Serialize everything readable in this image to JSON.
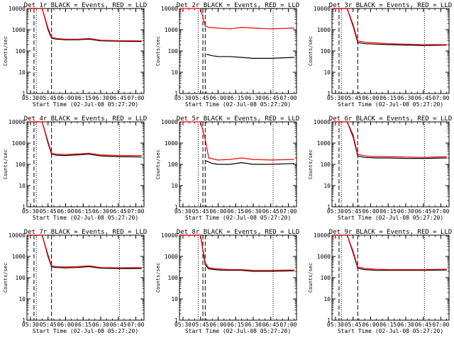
{
  "figure": {
    "x_axis_label": "Start Time (02-Jul-08 05:27:20)",
    "y_axis_label": "Counts/sec",
    "x_tick_labels": [
      "05:30",
      "05:45",
      "06:00",
      "06:15",
      "06:30",
      "06:45",
      "07:00"
    ],
    "y_tick_labels": [
      "1",
      "10",
      "100",
      "1000",
      "10000"
    ]
  },
  "chart_data": [
    {
      "type": "line",
      "title": "Det 1r BLACK = Events, RED = LLD",
      "xlabel": "Start Time (02-Jul-08 05:27:20)",
      "ylabel": "Counts/sec",
      "xlim": [
        "05:27",
        "07:07"
      ],
      "ylim": [
        1,
        10000
      ],
      "yscale": "log",
      "x_ticks": [
        "05:30",
        "05:45",
        "06:00",
        "06:15",
        "06:30",
        "06:45",
        "07:00"
      ],
      "dashed_markers": [
        "05:33",
        "05:48"
      ],
      "dotted_markers": [
        "05:35",
        "06:46"
      ],
      "series": [
        {
          "color": "#000000",
          "x": [
            "05:27",
            "05:32",
            "05:40",
            "05:45",
            "05:48",
            "05:52",
            "06:00",
            "06:10",
            "06:20",
            "06:30",
            "06:45",
            "07:05"
          ],
          "values": [
            10000,
            10000,
            10000,
            1000,
            400,
            360,
            340,
            340,
            360,
            300,
            290,
            280
          ]
        },
        {
          "color": "#ff0000",
          "x": [
            "05:27",
            "05:32",
            "05:40",
            "05:45",
            "05:48",
            "05:52",
            "06:00",
            "06:10",
            "06:20",
            "06:30",
            "06:45",
            "07:05"
          ],
          "values": [
            10000,
            10000,
            10000,
            1200,
            450,
            390,
            360,
            360,
            390,
            320,
            310,
            300
          ]
        }
      ]
    },
    {
      "type": "line",
      "title": "Det 2r BLACK = Events, RED = LLD",
      "xlabel": "Start Time (02-Jul-08 05:27:20)",
      "ylabel": "Counts/sec",
      "xlim": [
        "05:27",
        "07:07"
      ],
      "ylim": [
        1,
        10000
      ],
      "yscale": "log",
      "x_ticks": [
        "05:30",
        "05:45",
        "06:00",
        "06:15",
        "06:30",
        "06:45",
        "07:00"
      ],
      "dashed_markers": [
        "05:47",
        "05:49"
      ],
      "dotted_markers": [
        "05:43",
        "06:47"
      ],
      "series": [
        {
          "color": "#000000",
          "x": [
            "05:50",
            "05:55",
            "06:00",
            "06:10",
            "06:20",
            "06:30",
            "06:45",
            "07:05"
          ],
          "values": [
            70,
            60,
            55,
            55,
            50,
            45,
            45,
            50
          ]
        },
        {
          "color": "#ff0000",
          "x": [
            "05:27",
            "05:35",
            "05:45",
            "05:49",
            "05:52",
            "06:00",
            "06:10",
            "06:20",
            "06:30",
            "06:45",
            "07:05"
          ],
          "values": [
            10000,
            10000,
            10000,
            1500,
            1300,
            1200,
            1100,
            1300,
            1200,
            1100,
            1200
          ]
        }
      ]
    },
    {
      "type": "line",
      "title": "Det 3r BLACK = Events, RED = LLD",
      "xlabel": "Start Time (02-Jul-08 05:27:20)",
      "ylabel": "Counts/sec",
      "xlim": [
        "05:27",
        "07:07"
      ],
      "ylim": [
        1,
        10000
      ],
      "yscale": "log",
      "x_ticks": [
        "05:30",
        "05:45",
        "06:00",
        "06:15",
        "06:30",
        "06:45",
        "07:00"
      ],
      "dashed_markers": [
        "05:33",
        "05:49"
      ],
      "dotted_markers": [
        "05:35",
        "06:46"
      ],
      "series": [
        {
          "color": "#000000",
          "x": [
            "05:27",
            "05:40",
            "05:45",
            "05:49",
            "05:55",
            "06:05",
            "06:15",
            "06:30",
            "06:45",
            "07:05"
          ],
          "values": [
            10000,
            10000,
            1500,
            250,
            220,
            210,
            200,
            190,
            180,
            190
          ]
        },
        {
          "color": "#ff0000",
          "x": [
            "05:27",
            "05:40",
            "05:45",
            "05:49",
            "05:55",
            "06:05",
            "06:15",
            "06:30",
            "06:45",
            "07:05"
          ],
          "values": [
            10000,
            10000,
            1800,
            300,
            260,
            240,
            220,
            210,
            200,
            200
          ]
        }
      ]
    },
    {
      "type": "line",
      "title": "Det 4r BLACK = Events, RED = LLD",
      "xlabel": "Start Time (02-Jul-08 05:27:20)",
      "ylabel": "Counts/sec",
      "xlim": [
        "05:27",
        "07:07"
      ],
      "ylim": [
        1,
        10000
      ],
      "yscale": "log",
      "x_ticks": [
        "05:30",
        "05:45",
        "06:00",
        "06:15",
        "06:30",
        "06:45",
        "07:00"
      ],
      "dashed_markers": [
        "05:33",
        "05:48"
      ],
      "dotted_markers": [
        "05:35",
        "06:46"
      ],
      "series": [
        {
          "color": "#000000",
          "x": [
            "05:27",
            "05:32",
            "05:40",
            "05:45",
            "05:48",
            "05:52",
            "06:00",
            "06:10",
            "06:20",
            "06:30",
            "06:45",
            "07:05"
          ],
          "values": [
            10000,
            10000,
            10000,
            1000,
            300,
            270,
            260,
            280,
            300,
            250,
            230,
            220
          ]
        },
        {
          "color": "#ff0000",
          "x": [
            "05:27",
            "05:32",
            "05:40",
            "05:45",
            "05:48",
            "05:52",
            "06:00",
            "06:10",
            "06:20",
            "06:30",
            "06:45",
            "07:05"
          ],
          "values": [
            10000,
            10000,
            10000,
            1200,
            340,
            300,
            290,
            310,
            330,
            280,
            260,
            260
          ]
        }
      ]
    },
    {
      "type": "line",
      "title": "Det 5r BLACK = Events, RED = LLD",
      "xlabel": "Start Time (02-Jul-08 05:27:20)",
      "ylabel": "Counts/sec",
      "xlim": [
        "05:27",
        "07:07"
      ],
      "ylim": [
        1,
        10000
      ],
      "yscale": "log",
      "x_ticks": [
        "05:30",
        "05:45",
        "06:00",
        "06:15",
        "06:30",
        "06:45",
        "07:00"
      ],
      "dashed_markers": [
        "05:47",
        "05:49"
      ],
      "dotted_markers": [
        "05:43",
        "06:47"
      ],
      "series": [
        {
          "color": "#000000",
          "x": [
            "05:49",
            "05:55",
            "06:00",
            "06:10",
            "06:20",
            "06:30",
            "06:45",
            "07:05"
          ],
          "values": [
            150,
            110,
            100,
            100,
            120,
            100,
            100,
            110
          ]
        },
        {
          "color": "#ff0000",
          "x": [
            "05:27",
            "05:35",
            "05:45",
            "05:49",
            "05:52",
            "06:00",
            "06:10",
            "06:20",
            "06:30",
            "06:45",
            "07:05"
          ],
          "values": [
            10000,
            10000,
            10000,
            1500,
            200,
            160,
            170,
            200,
            170,
            160,
            170
          ]
        }
      ]
    },
    {
      "type": "line",
      "title": "Det 6r BLACK = Events, RED = LLD",
      "xlabel": "Start Time (02-Jul-08 05:27:20)",
      "ylabel": "Counts/sec",
      "xlim": [
        "05:27",
        "07:07"
      ],
      "ylim": [
        1,
        10000
      ],
      "yscale": "log",
      "x_ticks": [
        "05:30",
        "05:45",
        "06:00",
        "06:15",
        "06:30",
        "06:45",
        "07:00"
      ],
      "dashed_markers": [
        "05:33",
        "05:49"
      ],
      "dotted_markers": [
        "05:35",
        "06:46"
      ],
      "series": [
        {
          "color": "#000000",
          "x": [
            "05:27",
            "05:40",
            "05:45",
            "05:49",
            "05:55",
            "06:05",
            "06:15",
            "06:30",
            "06:45",
            "07:05"
          ],
          "values": [
            10000,
            10000,
            2000,
            250,
            210,
            200,
            200,
            190,
            190,
            200
          ]
        },
        {
          "color": "#ff0000",
          "x": [
            "05:27",
            "05:40",
            "05:45",
            "05:49",
            "05:55",
            "06:05",
            "06:15",
            "06:30",
            "06:45",
            "07:05"
          ],
          "values": [
            10000,
            10000,
            2500,
            300,
            250,
            230,
            230,
            220,
            210,
            230
          ]
        }
      ]
    },
    {
      "type": "line",
      "title": "Det 7r BLACK = Events, RED = LLD",
      "xlabel": "Start Time (02-Jul-08 05:27:20)",
      "ylabel": "Counts/sec",
      "xlim": [
        "05:27",
        "07:07"
      ],
      "ylim": [
        1,
        10000
      ],
      "yscale": "log",
      "x_ticks": [
        "05:30",
        "05:45",
        "06:00",
        "06:15",
        "06:30",
        "06:45",
        "07:00"
      ],
      "dashed_markers": [
        "05:33",
        "05:48"
      ],
      "dotted_markers": [
        "05:35",
        "06:46"
      ],
      "series": [
        {
          "color": "#000000",
          "x": [
            "05:27",
            "05:32",
            "05:40",
            "05:45",
            "05:48",
            "05:52",
            "06:00",
            "06:10",
            "06:20",
            "06:30",
            "06:45",
            "07:05"
          ],
          "values": [
            10000,
            10000,
            10000,
            1000,
            320,
            300,
            290,
            300,
            330,
            280,
            270,
            270
          ]
        },
        {
          "color": "#ff0000",
          "x": [
            "05:27",
            "05:32",
            "05:40",
            "05:45",
            "05:48",
            "05:52",
            "06:00",
            "06:10",
            "06:20",
            "06:30",
            "06:45",
            "07:05"
          ],
          "values": [
            10000,
            10000,
            10000,
            1200,
            360,
            330,
            320,
            330,
            360,
            300,
            290,
            300
          ]
        }
      ]
    },
    {
      "type": "line",
      "title": "Det 8r BLACK = Events, RED = LLD",
      "xlabel": "Start Time (02-Jul-08 05:27:20)",
      "ylabel": "Counts/sec",
      "xlim": [
        "05:27",
        "07:07"
      ],
      "ylim": [
        1,
        10000
      ],
      "yscale": "log",
      "x_ticks": [
        "05:30",
        "05:45",
        "06:00",
        "06:15",
        "06:30",
        "06:45",
        "07:00"
      ],
      "dashed_markers": [
        "05:47",
        "05:49"
      ],
      "dotted_markers": [
        "05:43",
        "06:47"
      ],
      "series": [
        {
          "color": "#000000",
          "x": [
            "05:27",
            "05:35",
            "05:45",
            "05:49",
            "05:52",
            "06:00",
            "06:10",
            "06:20",
            "06:30",
            "06:45",
            "07:05"
          ],
          "values": [
            10000,
            10000,
            10000,
            400,
            260,
            230,
            220,
            220,
            200,
            200,
            210
          ]
        },
        {
          "color": "#ff0000",
          "x": [
            "05:27",
            "05:35",
            "05:45",
            "05:49",
            "05:52",
            "06:00",
            "06:10",
            "06:20",
            "06:30",
            "06:45",
            "07:05"
          ],
          "values": [
            10000,
            10000,
            10000,
            500,
            290,
            260,
            240,
            240,
            220,
            220,
            230
          ]
        }
      ]
    },
    {
      "type": "line",
      "title": "Det 9r BLACK = Events, RED = LLD",
      "xlabel": "Start Time (02-Jul-08 05:27:20)",
      "ylabel": "Counts/sec",
      "xlim": [
        "05:27",
        "07:07"
      ],
      "ylim": [
        1,
        10000
      ],
      "yscale": "log",
      "x_ticks": [
        "05:30",
        "05:45",
        "06:00",
        "06:15",
        "06:30",
        "06:45",
        "07:00"
      ],
      "dashed_markers": [
        "05:33",
        "05:49"
      ],
      "dotted_markers": [
        "05:35",
        "06:46"
      ],
      "series": [
        {
          "color": "#000000",
          "x": [
            "05:27",
            "05:40",
            "05:45",
            "05:49",
            "05:55",
            "06:05",
            "06:15",
            "06:30",
            "06:45",
            "07:05"
          ],
          "values": [
            10000,
            10000,
            1500,
            280,
            240,
            220,
            220,
            220,
            220,
            230
          ]
        },
        {
          "color": "#ff0000",
          "x": [
            "05:27",
            "05:40",
            "05:45",
            "05:49",
            "05:55",
            "06:05",
            "06:15",
            "06:30",
            "06:45",
            "07:05"
          ],
          "values": [
            10000,
            10000,
            1800,
            320,
            270,
            250,
            240,
            240,
            240,
            250
          ]
        }
      ]
    }
  ]
}
